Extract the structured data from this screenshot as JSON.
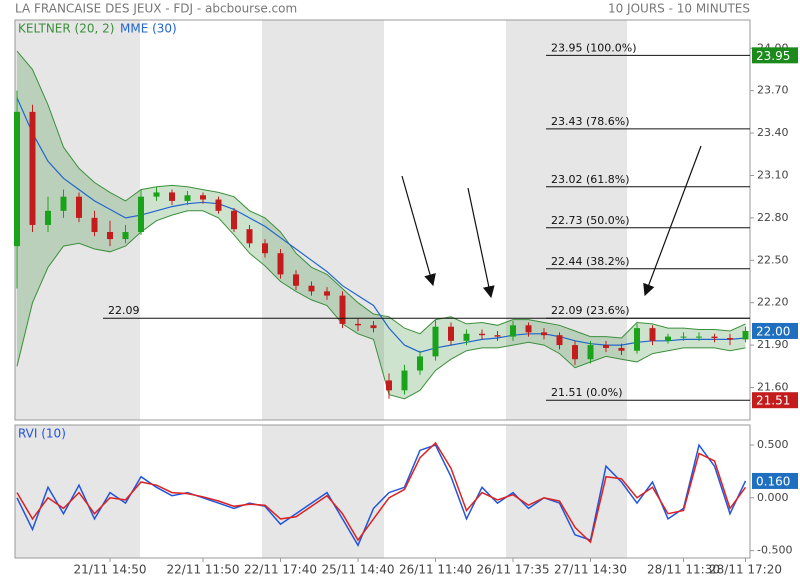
{
  "header": {
    "title": "LA FRANCAISE DES JEUX - FDJ - abcbourse.com",
    "period": "10 JOURS - 10 MINUTES"
  },
  "chart_data": [
    {
      "type": "candlestick",
      "categories": [
        null,
        null,
        null,
        null,
        null,
        null,
        "21/11 14:50",
        null,
        null,
        null,
        null,
        null,
        "22/11 11:50",
        null,
        null,
        null,
        null,
        "22/11 17:40",
        null,
        null,
        null,
        null,
        "25/11 14:40",
        null,
        null,
        null,
        null,
        "26/11 11:40",
        null,
        null,
        null,
        null,
        "26/11 17:35",
        null,
        null,
        null,
        null,
        "27/11 14:30",
        null,
        null,
        null,
        null,
        null,
        "28/11 11:30",
        null,
        null,
        null,
        "28/11 17:20"
      ],
      "open": [
        22.6,
        23.55,
        22.75,
        22.85,
        22.95,
        22.8,
        22.7,
        22.65,
        22.7,
        22.95,
        22.98,
        22.92,
        22.96,
        22.93,
        22.85,
        22.72,
        22.62,
        22.55,
        22.4,
        22.32,
        22.28,
        22.25,
        22.05,
        22.04,
        21.65,
        21.58,
        21.72,
        21.82,
        22.03,
        21.93,
        21.98,
        21.97,
        21.96,
        22.04,
        21.99,
        21.97,
        21.9,
        21.8,
        21.9,
        21.88,
        21.86,
        22.02,
        21.93,
        21.96,
        21.96,
        21.96,
        21.95,
        21.94
      ],
      "high": [
        23.7,
        23.6,
        22.95,
        23.0,
        22.98,
        22.85,
        22.78,
        22.75,
        23.0,
        23.02,
        23.0,
        22.99,
        22.98,
        22.95,
        22.87,
        22.75,
        22.65,
        22.58,
        22.43,
        22.35,
        22.31,
        22.28,
        22.09,
        22.07,
        21.7,
        21.76,
        21.86,
        22.08,
        22.06,
        22.01,
        22.01,
        22.0,
        22.07,
        22.06,
        22.02,
        21.99,
        21.93,
        21.93,
        21.93,
        21.91,
        22.05,
        22.04,
        21.98,
        21.99,
        21.99,
        21.98,
        21.98,
        22.03
      ],
      "low": [
        22.3,
        22.7,
        22.7,
        22.8,
        22.77,
        22.67,
        22.6,
        22.62,
        22.68,
        22.92,
        22.89,
        22.89,
        22.9,
        22.83,
        22.7,
        22.59,
        22.52,
        22.37,
        22.29,
        22.25,
        22.22,
        22.02,
        22.0,
        21.99,
        21.52,
        21.55,
        21.69,
        21.79,
        21.9,
        21.9,
        21.94,
        21.93,
        21.93,
        21.96,
        21.94,
        21.87,
        21.76,
        21.77,
        21.85,
        21.83,
        21.84,
        21.9,
        21.91,
        21.93,
        21.93,
        21.92,
        21.9,
        21.92
      ],
      "close": [
        23.55,
        22.75,
        22.85,
        22.95,
        22.8,
        22.7,
        22.65,
        22.7,
        22.95,
        22.98,
        22.92,
        22.96,
        22.93,
        22.85,
        22.72,
        22.62,
        22.55,
        22.4,
        22.32,
        22.28,
        22.25,
        22.05,
        22.04,
        22.02,
        21.58,
        21.72,
        21.82,
        22.03,
        21.93,
        21.98,
        21.97,
        21.96,
        22.04,
        21.99,
        21.97,
        21.9,
        21.8,
        21.9,
        21.88,
        21.86,
        22.02,
        21.93,
        21.96,
        21.96,
        21.96,
        21.95,
        21.94,
        22.0
      ],
      "up_color": "#1aa31a",
      "down_color": "#c41c1c",
      "series": [
        {
          "name": "KELTNER (20, 2)",
          "color": "#3c8f3c",
          "upper": [
            23.98,
            23.85,
            23.6,
            23.3,
            23.15,
            23.05,
            22.98,
            22.92,
            23.0,
            23.02,
            23.03,
            23.02,
            23.0,
            22.98,
            22.95,
            22.85,
            22.8,
            22.7,
            22.55,
            22.45,
            22.4,
            22.3,
            22.2,
            22.12,
            22.1,
            22.02,
            21.98,
            22.08,
            22.1,
            22.05,
            22.06,
            22.04,
            22.08,
            22.08,
            22.06,
            22.04,
            22.0,
            21.96,
            21.96,
            21.95,
            22.06,
            22.05,
            22.02,
            22.02,
            22.01,
            22.01,
            22.0,
            22.05
          ],
          "lower": [
            21.75,
            22.2,
            22.45,
            22.6,
            22.62,
            22.58,
            22.56,
            22.6,
            22.7,
            22.78,
            22.82,
            22.85,
            22.85,
            22.8,
            22.68,
            22.55,
            22.46,
            22.35,
            22.28,
            22.22,
            22.18,
            22.05,
            21.98,
            21.94,
            21.55,
            21.52,
            21.58,
            21.72,
            21.8,
            21.86,
            21.88,
            21.88,
            21.9,
            21.92,
            21.9,
            21.84,
            21.74,
            21.78,
            21.82,
            21.8,
            21.78,
            21.84,
            21.86,
            21.88,
            21.88,
            21.88,
            21.86,
            21.88
          ]
        },
        {
          "name": "MME (30)",
          "color": "#2266cc",
          "values": [
            23.65,
            23.4,
            23.2,
            23.08,
            23.0,
            22.92,
            22.86,
            22.8,
            22.82,
            22.85,
            22.88,
            22.9,
            22.91,
            22.9,
            22.86,
            22.8,
            22.74,
            22.66,
            22.58,
            22.5,
            22.42,
            22.32,
            22.25,
            22.18,
            22.02,
            21.9,
            21.85,
            21.88,
            21.9,
            21.92,
            21.94,
            21.95,
            21.97,
            21.98,
            21.98,
            21.96,
            21.93,
            21.91,
            21.9,
            21.9,
            21.92,
            21.93,
            21.93,
            21.94,
            21.94,
            21.94,
            21.94,
            21.95
          ]
        }
      ],
      "ylim": [
        21.37,
        24.2
      ],
      "yticks": [
        {
          "value": 21.6,
          "label": "21.60"
        },
        {
          "value": 21.9,
          "label": "21.90"
        },
        {
          "value": 22.2,
          "label": "22.20"
        },
        {
          "value": 22.5,
          "label": "22.50"
        },
        {
          "value": 22.8,
          "label": "22.80"
        },
        {
          "value": 23.1,
          "label": "23.10"
        },
        {
          "value": 23.4,
          "label": "23.40"
        },
        {
          "value": 23.7,
          "label": "23.70"
        },
        {
          "value": 24,
          "label": "24.00"
        }
      ],
      "grid": false,
      "levels": [
        {
          "value": 23.95,
          "label": "23.95 (100.0%)"
        },
        {
          "value": 23.43,
          "label": "23.43 (78.6%)"
        },
        {
          "value": 23.02,
          "label": "23.02 (61.8%)"
        },
        {
          "value": 22.73,
          "label": "22.73 (50.0%)"
        },
        {
          "value": 22.44,
          "label": "22.44 (38.2%)"
        },
        {
          "value": 22.09,
          "label": "22.09 (23.6%)"
        },
        {
          "value": 21.51,
          "label": "21.51 (0.0%)"
        }
      ],
      "hlines": [
        {
          "value": 22.09,
          "label": "22.09"
        }
      ],
      "price_tags": [
        {
          "value": 23.95,
          "label": "23.95",
          "color": "#1a8a1a"
        },
        {
          "value": 22,
          "label": "22.00",
          "color": "#1e6fc0"
        },
        {
          "value": 21.51,
          "label": "21.51",
          "color": "#c41c1c"
        }
      ]
    },
    {
      "type": "line",
      "title": "RVI (10)",
      "series": [
        {
          "color": "#2255dd",
          "values": [
            0.0,
            -0.3,
            0.1,
            -0.15,
            0.12,
            -0.2,
            0.05,
            -0.05,
            0.2,
            0.1,
            0.02,
            0.05,
            0.0,
            -0.05,
            -0.1,
            -0.05,
            -0.08,
            -0.25,
            -0.15,
            -0.05,
            0.05,
            -0.2,
            -0.45,
            -0.1,
            0.05,
            0.1,
            0.45,
            0.5,
            0.2,
            -0.2,
            0.1,
            -0.05,
            0.05,
            -0.1,
            0.0,
            -0.05,
            -0.35,
            -0.4,
            0.3,
            0.15,
            -0.05,
            0.15,
            -0.2,
            -0.1,
            0.5,
            0.3,
            -0.15,
            0.16
          ]
        },
        {
          "color": "#dd2222",
          "values": [
            0.05,
            -0.2,
            0.0,
            -0.1,
            0.05,
            -0.15,
            0.0,
            -0.02,
            0.15,
            0.12,
            0.05,
            0.04,
            0.01,
            -0.03,
            -0.08,
            -0.06,
            -0.07,
            -0.2,
            -0.18,
            -0.08,
            0.02,
            -0.15,
            -0.4,
            -0.2,
            0.0,
            0.08,
            0.38,
            0.52,
            0.28,
            -0.12,
            0.05,
            -0.02,
            0.03,
            -0.07,
            0.0,
            -0.03,
            -0.28,
            -0.42,
            0.2,
            0.18,
            0.0,
            0.1,
            -0.15,
            -0.12,
            0.42,
            0.35,
            -0.1,
            0.1
          ]
        }
      ],
      "ylim": [
        -0.57,
        0.69
      ],
      "yticks": [
        {
          "value": -0.5,
          "label": "-0.500"
        },
        {
          "value": 0,
          "label": "0.000"
        },
        {
          "value": 0.5,
          "label": "0.500"
        }
      ],
      "grid": false,
      "price_tags": [
        {
          "value": 0.16,
          "label": "0.160",
          "color": "#1e6fc0"
        }
      ]
    }
  ]
}
